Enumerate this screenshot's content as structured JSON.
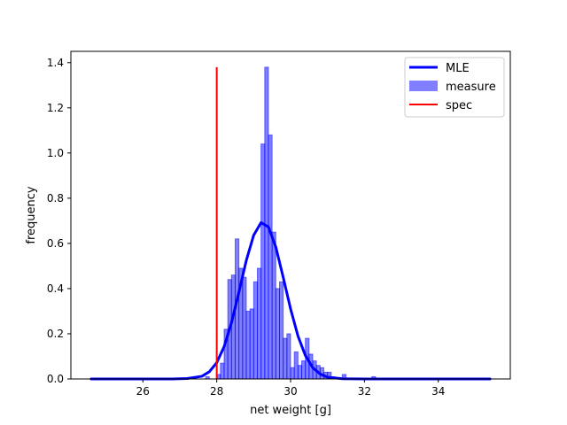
{
  "chart_data": {
    "type": "bar",
    "xlabel": "net weight [g]",
    "ylabel": "frequency",
    "xlim": [
      24.05,
      35.95
    ],
    "ylim": [
      0,
      1.45
    ],
    "xticks": [
      26,
      28,
      30,
      32,
      34
    ],
    "yticks": [
      0.0,
      0.2,
      0.4,
      0.6,
      0.8,
      1.0,
      1.2,
      1.4
    ],
    "grid": false,
    "legend_position": "top-right",
    "series": [
      {
        "name": "measure",
        "kind": "histogram",
        "color": "#0000ff",
        "bin_width": 0.1,
        "bins": [
          {
            "x": 27.7,
            "y": 0.01
          },
          {
            "x": 28.0,
            "y": 0.02
          },
          {
            "x": 28.1,
            "y": 0.07
          },
          {
            "x": 28.2,
            "y": 0.22
          },
          {
            "x": 28.3,
            "y": 0.44
          },
          {
            "x": 28.4,
            "y": 0.46
          },
          {
            "x": 28.5,
            "y": 0.62
          },
          {
            "x": 28.6,
            "y": 0.49
          },
          {
            "x": 28.7,
            "y": 0.45
          },
          {
            "x": 28.8,
            "y": 0.3
          },
          {
            "x": 28.9,
            "y": 0.31
          },
          {
            "x": 29.0,
            "y": 0.43
          },
          {
            "x": 29.1,
            "y": 0.49
          },
          {
            "x": 29.2,
            "y": 1.04
          },
          {
            "x": 29.3,
            "y": 1.38
          },
          {
            "x": 29.4,
            "y": 1.08
          },
          {
            "x": 29.5,
            "y": 0.65
          },
          {
            "x": 29.6,
            "y": 0.4
          },
          {
            "x": 29.7,
            "y": 0.43
          },
          {
            "x": 29.8,
            "y": 0.18
          },
          {
            "x": 29.9,
            "y": 0.2
          },
          {
            "x": 30.0,
            "y": 0.05
          },
          {
            "x": 30.1,
            "y": 0.12
          },
          {
            "x": 30.2,
            "y": 0.06
          },
          {
            "x": 30.3,
            "y": 0.08
          },
          {
            "x": 30.4,
            "y": 0.18
          },
          {
            "x": 30.5,
            "y": 0.11
          },
          {
            "x": 30.6,
            "y": 0.08
          },
          {
            "x": 30.7,
            "y": 0.06
          },
          {
            "x": 30.8,
            "y": 0.05
          },
          {
            "x": 30.9,
            "y": 0.03
          },
          {
            "x": 31.0,
            "y": 0.03
          },
          {
            "x": 31.1,
            "y": 0.01
          },
          {
            "x": 31.4,
            "y": 0.02
          },
          {
            "x": 32.2,
            "y": 0.01
          }
        ]
      },
      {
        "name": "MLE",
        "kind": "line",
        "color": "#0000ff",
        "x": [
          24.6,
          26.0,
          26.8,
          27.2,
          27.6,
          27.8,
          28.0,
          28.2,
          28.4,
          28.6,
          28.8,
          29.0,
          29.2,
          29.4,
          29.6,
          29.8,
          30.0,
          30.2,
          30.4,
          30.6,
          30.8,
          31.0,
          31.4,
          32.0,
          33.0,
          35.4
        ],
        "y": [
          0.0,
          0.0,
          0.0,
          0.002,
          0.012,
          0.032,
          0.072,
          0.143,
          0.249,
          0.384,
          0.524,
          0.636,
          0.692,
          0.673,
          0.584,
          0.45,
          0.31,
          0.19,
          0.104,
          0.05,
          0.022,
          0.008,
          0.001,
          0.0,
          0.0,
          0.0
        ]
      },
      {
        "name": "spec",
        "kind": "vline",
        "color": "#ff0000",
        "x": 28.0,
        "y_range": [
          0,
          1.38
        ]
      }
    ]
  },
  "legend": {
    "items": [
      {
        "label": "MLE",
        "kind": "line",
        "color": "#0000ff"
      },
      {
        "label": "measure",
        "kind": "patch",
        "color": "#0000ff"
      },
      {
        "label": "spec",
        "kind": "line",
        "color": "#ff0000"
      }
    ]
  }
}
